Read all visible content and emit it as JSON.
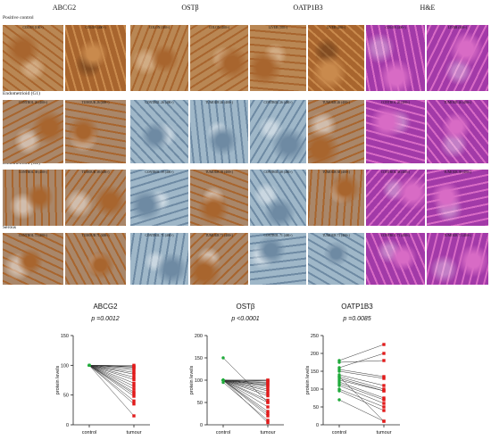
{
  "headers": [
    "ABCG2",
    "OSTβ",
    "OATP1B3",
    "H&E"
  ],
  "rows": [
    {
      "label": "Positive control",
      "kind": "control",
      "captions": [
        "COLON (100×)",
        "COLON (400×)",
        "COLON (100×)",
        "COLON (400×)",
        "LIVER (100×)",
        "LIVER (400×)",
        "COLON (400×)",
        "LIVER (400×)"
      ]
    },
    {
      "label": "Endometrioid (G1)",
      "kind": "tumor",
      "captions": [
        "CONTROL 26 (400×)",
        "TUMOUR 26 (400×)",
        "CONTROL 26 (400×)",
        "TUMOUR 26 (400×)",
        "CONTROL 26 (400×)",
        "TUMOUR 26 (400×)",
        "CONTROL 26 (400×)",
        "TUMOUR 26 (400×)"
      ]
    },
    {
      "label": "Endometrioid (G2)",
      "kind": "tumor",
      "captions": [
        "CONTROL 38 (400×)",
        "TUMOUR 38 (400×)",
        "CONTROL 39 (400×)",
        "TUMOUR 39 (400×)",
        "CONTROL 38 (400×)",
        "TUMOUR 38 (400×)",
        "CONTROL 38 (400×)",
        "TUMOUR 38 (400×)"
      ]
    },
    {
      "label": "Serous",
      "kind": "tumor",
      "captions": [
        "CONTROL 71 (400×)",
        "TUMOUR 71 (400×)",
        "CONTROL 71 (400×)",
        "TUMOUR 71 (400×)",
        "CONTROL 71 (400×)",
        "TUMOUR 71 (400×)",
        "CONTROL 71 (400×)",
        "TUMOUR 71 (400×)"
      ]
    }
  ],
  "colors": {
    "ihc_brown": "#a8652e",
    "ihc_blue": "#9fb7c8",
    "he_purple": "#a23aa8",
    "he_pink": "#d86bc5",
    "control_point": "#1faa3a",
    "tumour_point": "#e21b1b"
  },
  "chart_data": [
    {
      "type": "scatter",
      "title": "ABCG2",
      "pvalue": "p =0.0012",
      "ylabel": "protein levels",
      "categories": [
        "control",
        "tumour"
      ],
      "ylim": [
        0,
        150
      ],
      "yticks": [
        0,
        50,
        100,
        150
      ],
      "pairs": [
        [
          100,
          100
        ],
        [
          100,
          98
        ],
        [
          100,
          97
        ],
        [
          100,
          95
        ],
        [
          100,
          92
        ],
        [
          100,
          88
        ],
        [
          100,
          85
        ],
        [
          100,
          80
        ],
        [
          100,
          76
        ],
        [
          100,
          70
        ],
        [
          100,
          65
        ],
        [
          100,
          60
        ],
        [
          100,
          55
        ],
        [
          100,
          52
        ],
        [
          100,
          48
        ],
        [
          100,
          40
        ],
        [
          100,
          35
        ],
        [
          100,
          15
        ]
      ]
    },
    {
      "type": "scatter",
      "title": "OSTβ",
      "pvalue": "p <0.0001",
      "ylabel": "protein levels",
      "categories": [
        "control",
        "tumour"
      ],
      "ylim": [
        0,
        200
      ],
      "yticks": [
        0,
        50,
        100,
        150,
        200
      ],
      "pairs": [
        [
          150,
          50
        ],
        [
          100,
          100
        ],
        [
          100,
          100
        ],
        [
          100,
          98
        ],
        [
          100,
          95
        ],
        [
          100,
          93
        ],
        [
          100,
          90
        ],
        [
          100,
          88
        ],
        [
          100,
          85
        ],
        [
          100,
          80
        ],
        [
          100,
          76
        ],
        [
          100,
          70
        ],
        [
          100,
          65
        ],
        [
          100,
          55
        ],
        [
          100,
          50
        ],
        [
          100,
          40
        ],
        [
          100,
          30
        ],
        [
          100,
          25
        ],
        [
          100,
          20
        ],
        [
          95,
          10
        ],
        [
          100,
          5
        ]
      ]
    },
    {
      "type": "scatter",
      "title": "OATP1B3",
      "pvalue": "p =0.0085",
      "ylabel": "protein levels",
      "categories": [
        "control",
        "tumour"
      ],
      "ylim": [
        0,
        250
      ],
      "yticks": [
        0,
        50,
        100,
        150,
        200,
        250
      ],
      "pairs": [
        [
          180,
          225
        ],
        [
          175,
          180
        ],
        [
          160,
          200
        ],
        [
          155,
          135
        ],
        [
          150,
          130
        ],
        [
          140,
          110
        ],
        [
          135,
          100
        ],
        [
          130,
          95
        ],
        [
          125,
          95
        ],
        [
          120,
          75
        ],
        [
          115,
          70
        ],
        [
          110,
          60
        ],
        [
          100,
          50
        ],
        [
          95,
          40
        ],
        [
          70,
          10
        ],
        [
          135,
          10
        ]
      ]
    }
  ]
}
